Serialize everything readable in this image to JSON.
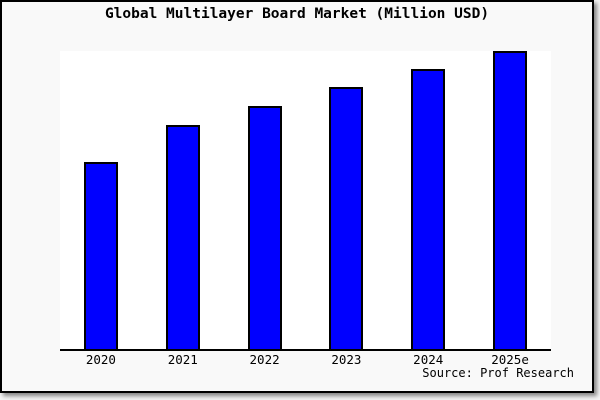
{
  "chart": {
    "title": "Global Multilayer Board Market (Million USD)",
    "source_note": "Source: Prof Research"
  },
  "chart_data": {
    "type": "bar",
    "title": "Global Multilayer Board Market (Million USD)",
    "categories": [
      "2020",
      "2021",
      "2022",
      "2023",
      "2024",
      "2025e"
    ],
    "values": [
      62.6,
      75.3,
      81.5,
      87.9,
      93.9,
      100
    ],
    "values_note": "relative bar heights, % of tallest bar; y-axis has no visible scale or tick labels",
    "xlabel": "",
    "ylabel": "",
    "ylim": [
      0,
      100
    ],
    "grid": false,
    "legend": false,
    "bar_color": "#0000ff",
    "bar_border_color": "#000000",
    "plot_background": "#ffffff",
    "page_background": "#f9f9f9",
    "annotations": [
      "Source: Prof Research"
    ]
  }
}
